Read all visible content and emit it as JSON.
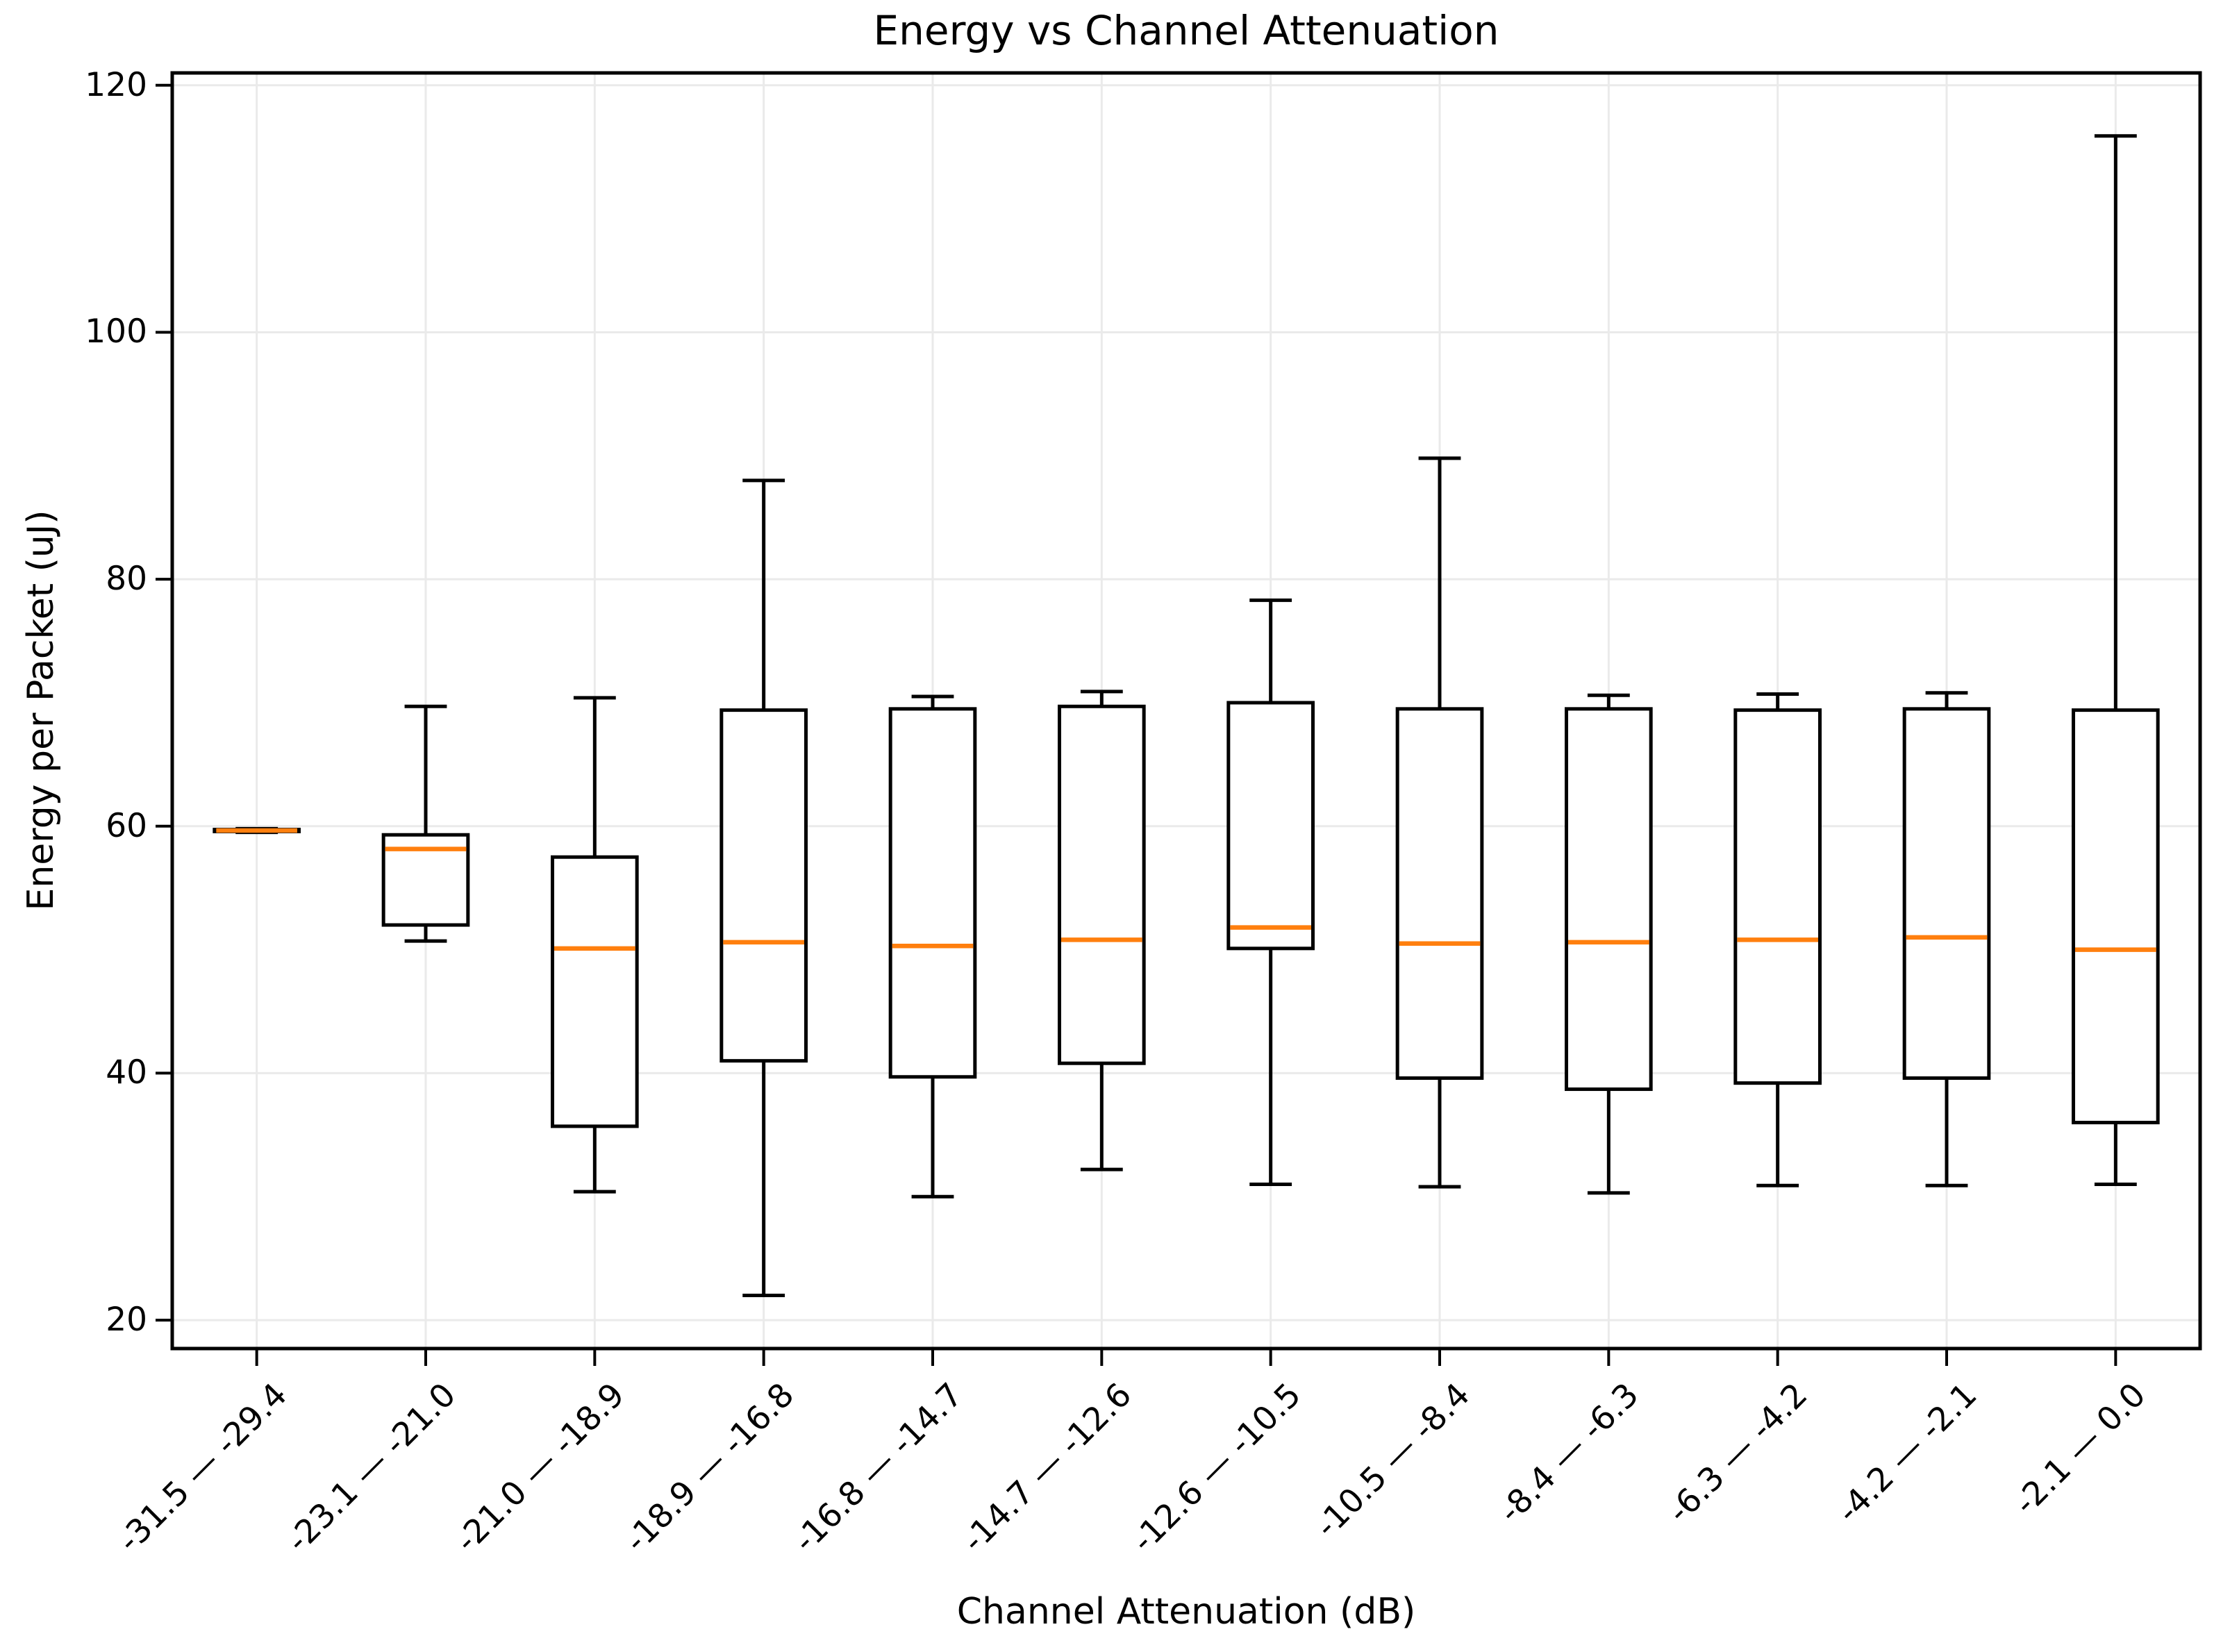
{
  "chart_data": {
    "type": "box",
    "title": "Energy vs Channel Attenuation",
    "xlabel": "Channel Attenuation (dB)",
    "ylabel": "Energy per Packet (uJ)",
    "categories": [
      "-31.5 — -29.4",
      "-23.1 — -21.0",
      "-21.0 — -18.9",
      "-18.9 — -16.8",
      "-16.8 — -14.7",
      "-14.7 — -12.6",
      "-12.6 — -10.5",
      "-10.5 — -8.4",
      "-8.4 — -6.3",
      "-6.3 — -4.2",
      "-4.2 — -2.1",
      "-2.1 — 0.0"
    ],
    "boxes": [
      {
        "whisker_low": 59.5,
        "q1": 59.57,
        "median": 59.65,
        "q3": 59.73,
        "whisker_high": 59.8
      },
      {
        "whisker_low": 50.7,
        "q1": 52.0,
        "median": 58.15,
        "q3": 59.3,
        "whisker_high": 69.7
      },
      {
        "whisker_low": 30.4,
        "q1": 35.7,
        "median": 50.1,
        "q3": 57.5,
        "whisker_high": 70.4
      },
      {
        "whisker_low": 22.0,
        "q1": 41.0,
        "median": 50.6,
        "q3": 69.4,
        "whisker_high": 88.0
      },
      {
        "whisker_low": 30.0,
        "q1": 39.7,
        "median": 50.3,
        "q3": 69.5,
        "whisker_high": 70.5
      },
      {
        "whisker_low": 32.2,
        "q1": 40.8,
        "median": 50.8,
        "q3": 69.7,
        "whisker_high": 70.9
      },
      {
        "whisker_low": 31.0,
        "q1": 50.1,
        "median": 51.8,
        "q3": 70.0,
        "whisker_high": 78.3
      },
      {
        "whisker_low": 30.8,
        "q1": 39.6,
        "median": 50.5,
        "q3": 69.5,
        "whisker_high": 89.8
      },
      {
        "whisker_low": 30.3,
        "q1": 38.7,
        "median": 50.6,
        "q3": 69.5,
        "whisker_high": 70.6
      },
      {
        "whisker_low": 30.9,
        "q1": 39.2,
        "median": 50.8,
        "q3": 69.4,
        "whisker_high": 70.7
      },
      {
        "whisker_low": 30.9,
        "q1": 39.6,
        "median": 51.0,
        "q3": 69.5,
        "whisker_high": 70.8
      },
      {
        "whisker_low": 31.0,
        "q1": 36.0,
        "median": 50.0,
        "q3": 69.4,
        "whisker_high": 115.9
      }
    ],
    "y_ticks": [
      20,
      40,
      60,
      80,
      100,
      120
    ],
    "ylim": [
      17.7,
      121.0
    ],
    "grid": true,
    "legend": false,
    "x_tick_rotation": 45,
    "colors": {
      "box_line": "#000000",
      "median": "#ff7f0e",
      "grid": "#eaeaea",
      "background": "#ffffff",
      "text": "#000000"
    }
  }
}
